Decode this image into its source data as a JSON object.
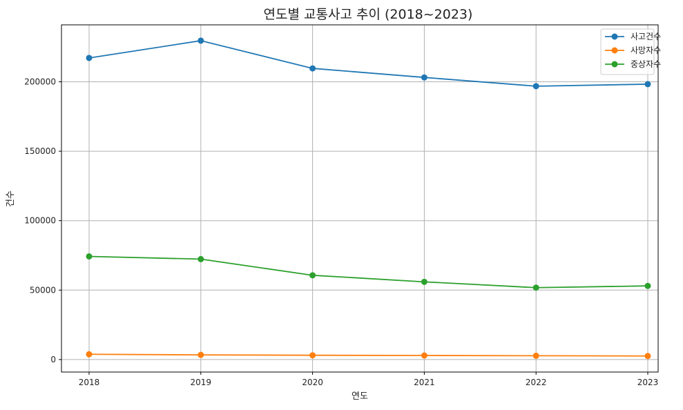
{
  "chart_data": {
    "type": "line",
    "title": "연도별 교통사고 추이 (2018~2023)",
    "xlabel": "연도",
    "ylabel": "건수",
    "categories": [
      "2018",
      "2019",
      "2020",
      "2021",
      "2022",
      "2023"
    ],
    "ylim": [
      -9000,
      241000
    ],
    "yticks": [
      0,
      50000,
      100000,
      150000,
      200000
    ],
    "ytick_labels": [
      "0",
      "50000",
      "100000",
      "150000",
      "200000"
    ],
    "grid": true,
    "legend_position": "top-right",
    "series": [
      {
        "name": "사고건수",
        "color": "#1f77b4",
        "values": [
          217148,
          229600,
          209654,
          203130,
          196836,
          198296
        ]
      },
      {
        "name": "사망자수",
        "color": "#ff7f0e",
        "values": [
          3781,
          3349,
          3081,
          2916,
          2735,
          2551
        ]
      },
      {
        "name": "중상자수",
        "color": "#2ca02c",
        "values": [
          74258,
          72306,
          60666,
          55941,
          51768,
          53030
        ]
      }
    ]
  }
}
